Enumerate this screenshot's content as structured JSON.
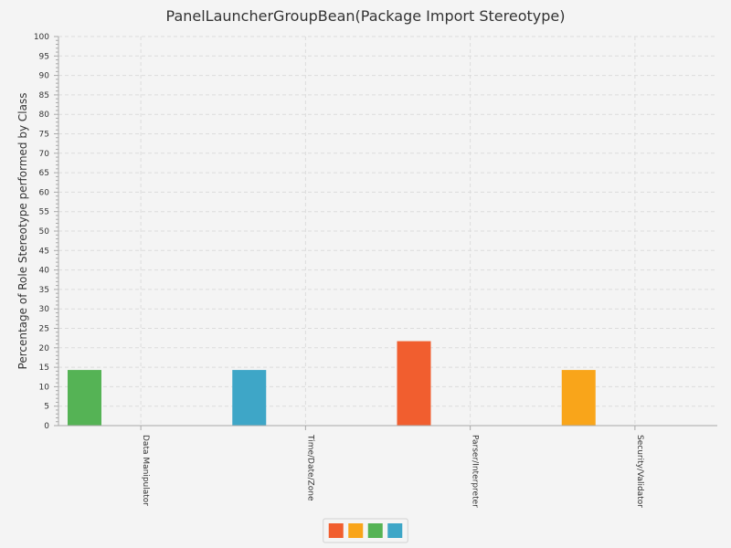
{
  "chart_data": {
    "type": "bar",
    "title": "PanelLauncherGroupBean(Package Import Stereotype)",
    "xlabel": "",
    "ylabel": "Percentage of Role Stereotype performed by Class",
    "ylim": [
      0,
      100
    ],
    "y_ticks": [
      0,
      5,
      10,
      15,
      20,
      25,
      30,
      35,
      40,
      45,
      50,
      55,
      60,
      65,
      70,
      75,
      80,
      85,
      90,
      95,
      100
    ],
    "grid": true,
    "legend_position": "bottom",
    "categories": [
      "Data Manipulator",
      "Time/Date/Zone",
      "Parser/Interpreter",
      "Security/Validator"
    ],
    "series": [
      {
        "color": "#f15e2f",
        "values": [
          0,
          0,
          21.7,
          0
        ]
      },
      {
        "color": "#f9a51a",
        "values": [
          0,
          0,
          0,
          14.3
        ]
      },
      {
        "color": "#55b355",
        "values": [
          14.3,
          0,
          0,
          0
        ]
      },
      {
        "color": "#3ea6c7",
        "values": [
          0,
          14.3,
          0,
          0
        ]
      }
    ]
  }
}
